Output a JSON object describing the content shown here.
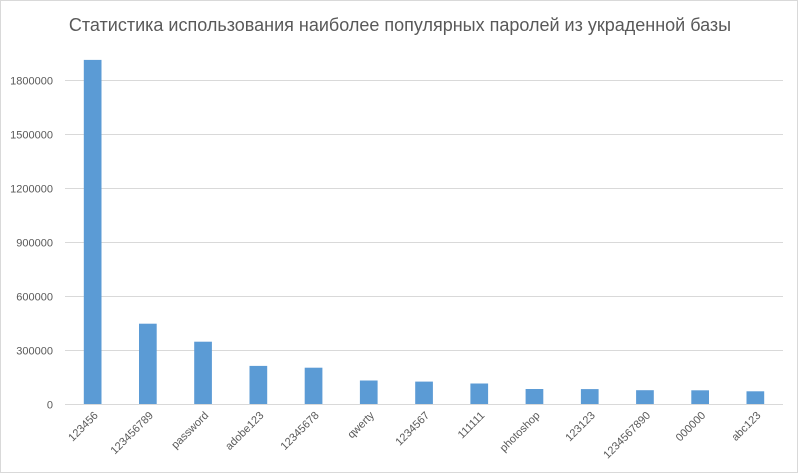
{
  "chart_data": {
    "type": "bar",
    "title": "Статистика использования наиболее популярных паролей из украденной базы",
    "xlabel": "",
    "ylabel": "",
    "categories": [
      "123456",
      "123456789",
      "password",
      "adobe123",
      "12345678",
      "qwerty",
      "1234567",
      "111111",
      "photoshop",
      "123123",
      "1234567890",
      "000000",
      "abc123"
    ],
    "values": [
      1911938,
      446162,
      345834,
      211659,
      201580,
      130832,
      124253,
      113884,
      83411,
      82694,
      76910,
      76186,
      70791
    ],
    "ylim": [
      0,
      2000000
    ],
    "yticks": [
      0,
      300000,
      600000,
      900000,
      1200000,
      1500000,
      1800000
    ],
    "ytick_labels": [
      "0",
      "300000",
      "600000",
      "900000",
      "1200000",
      "1500000",
      "1800000"
    ],
    "grid": true,
    "legend": "none",
    "colors": {
      "bar": "#5b9bd5",
      "grid": "#d9d9d9",
      "text": "#595959"
    }
  }
}
